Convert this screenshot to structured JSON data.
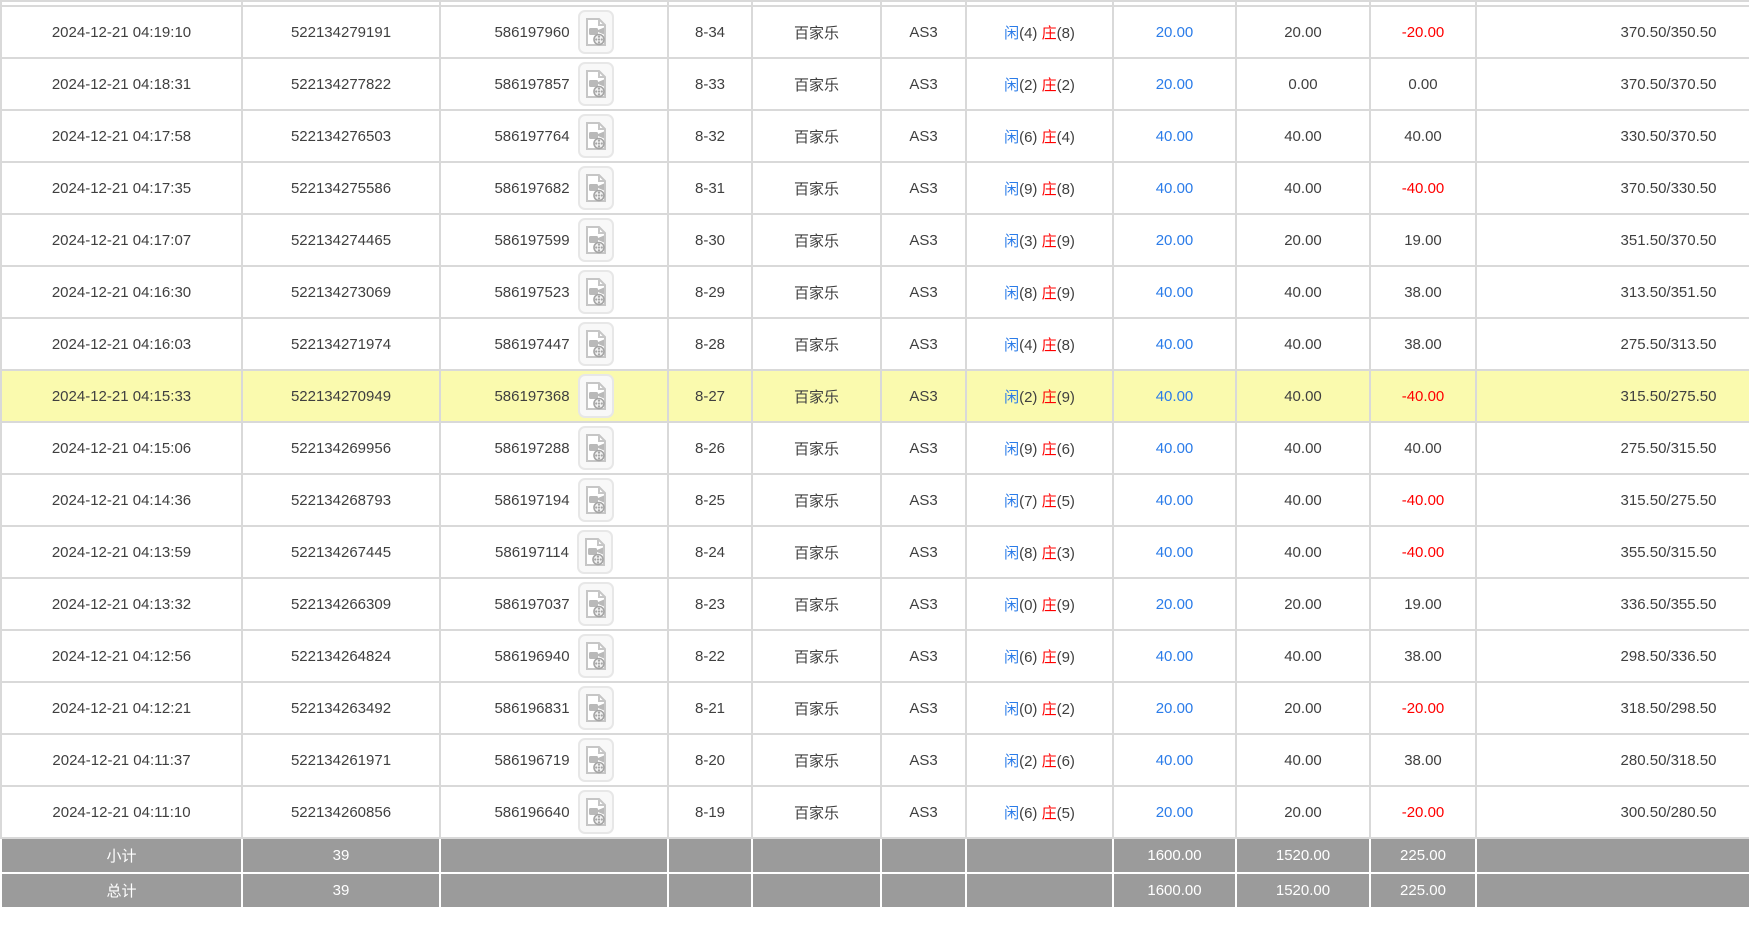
{
  "table": {
    "labels": {
      "player": "闲",
      "banker": "庄",
      "game": "百家乐",
      "table_name": "AS3",
      "subtotal": "小计",
      "total": "总计"
    },
    "colors": {
      "blue": "#2b7ce9",
      "red": "#ff0000",
      "text": "#3f3f3f",
      "grid": "#d9d9d9",
      "highlight_yellow": "#fafaae",
      "summary_bg": "#9b9b9b"
    },
    "icons": {
      "video_icon": "video-record-icon"
    },
    "rows": [
      {
        "time": "2024-12-21 04:19:10",
        "order_no": "522134279191",
        "video_no": "586197960",
        "round": "8-34",
        "game": "百家乐",
        "table_name": "AS3",
        "player": "4",
        "banker": "8",
        "bet": "20.00",
        "valid": "20.00",
        "win_loss": "-20.00",
        "balance": "370.50/350.50",
        "highlighted": false
      },
      {
        "time": "2024-12-21 04:18:31",
        "order_no": "522134277822",
        "video_no": "586197857",
        "round": "8-33",
        "game": "百家乐",
        "table_name": "AS3",
        "player": "2",
        "banker": "2",
        "bet": "20.00",
        "valid": "0.00",
        "win_loss": "0.00",
        "balance": "370.50/370.50",
        "highlighted": false
      },
      {
        "time": "2024-12-21 04:17:58",
        "order_no": "522134276503",
        "video_no": "586197764",
        "round": "8-32",
        "game": "百家乐",
        "table_name": "AS3",
        "player": "6",
        "banker": "4",
        "bet": "40.00",
        "valid": "40.00",
        "win_loss": "40.00",
        "balance": "330.50/370.50",
        "highlighted": false
      },
      {
        "time": "2024-12-21 04:17:35",
        "order_no": "522134275586",
        "video_no": "586197682",
        "round": "8-31",
        "game": "百家乐",
        "table_name": "AS3",
        "player": "9",
        "banker": "8",
        "bet": "40.00",
        "valid": "40.00",
        "win_loss": "-40.00",
        "balance": "370.50/330.50",
        "highlighted": false
      },
      {
        "time": "2024-12-21 04:17:07",
        "order_no": "522134274465",
        "video_no": "586197599",
        "round": "8-30",
        "game": "百家乐",
        "table_name": "AS3",
        "player": "3",
        "banker": "9",
        "bet": "20.00",
        "valid": "20.00",
        "win_loss": "19.00",
        "balance": "351.50/370.50",
        "highlighted": false
      },
      {
        "time": "2024-12-21 04:16:30",
        "order_no": "522134273069",
        "video_no": "586197523",
        "round": "8-29",
        "game": "百家乐",
        "table_name": "AS3",
        "player": "8",
        "banker": "9",
        "bet": "40.00",
        "valid": "40.00",
        "win_loss": "38.00",
        "balance": "313.50/351.50",
        "highlighted": false
      },
      {
        "time": "2024-12-21 04:16:03",
        "order_no": "522134271974",
        "video_no": "586197447",
        "round": "8-28",
        "game": "百家乐",
        "table_name": "AS3",
        "player": "4",
        "banker": "8",
        "bet": "40.00",
        "valid": "40.00",
        "win_loss": "38.00",
        "balance": "275.50/313.50",
        "highlighted": false
      },
      {
        "time": "2024-12-21 04:15:33",
        "order_no": "522134270949",
        "video_no": "586197368",
        "round": "8-27",
        "game": "百家乐",
        "table_name": "AS3",
        "player": "2",
        "banker": "9",
        "bet": "40.00",
        "valid": "40.00",
        "win_loss": "-40.00",
        "balance": "315.50/275.50",
        "highlighted": true
      },
      {
        "time": "2024-12-21 04:15:06",
        "order_no": "522134269956",
        "video_no": "586197288",
        "round": "8-26",
        "game": "百家乐",
        "table_name": "AS3",
        "player": "9",
        "banker": "6",
        "bet": "40.00",
        "valid": "40.00",
        "win_loss": "40.00",
        "balance": "275.50/315.50",
        "highlighted": false
      },
      {
        "time": "2024-12-21 04:14:36",
        "order_no": "522134268793",
        "video_no": "586197194",
        "round": "8-25",
        "game": "百家乐",
        "table_name": "AS3",
        "player": "7",
        "banker": "5",
        "bet": "40.00",
        "valid": "40.00",
        "win_loss": "-40.00",
        "balance": "315.50/275.50",
        "highlighted": false
      },
      {
        "time": "2024-12-21 04:13:59",
        "order_no": "522134267445",
        "video_no": "586197114",
        "round": "8-24",
        "game": "百家乐",
        "table_name": "AS3",
        "player": "8",
        "banker": "3",
        "bet": "40.00",
        "valid": "40.00",
        "win_loss": "-40.00",
        "balance": "355.50/315.50",
        "highlighted": false
      },
      {
        "time": "2024-12-21 04:13:32",
        "order_no": "522134266309",
        "video_no": "586197037",
        "round": "8-23",
        "game": "百家乐",
        "table_name": "AS3",
        "player": "0",
        "banker": "9",
        "bet": "20.00",
        "valid": "20.00",
        "win_loss": "19.00",
        "balance": "336.50/355.50",
        "highlighted": false
      },
      {
        "time": "2024-12-21 04:12:56",
        "order_no": "522134264824",
        "video_no": "586196940",
        "round": "8-22",
        "game": "百家乐",
        "table_name": "AS3",
        "player": "6",
        "banker": "9",
        "bet": "40.00",
        "valid": "40.00",
        "win_loss": "38.00",
        "balance": "298.50/336.50",
        "highlighted": false
      },
      {
        "time": "2024-12-21 04:12:21",
        "order_no": "522134263492",
        "video_no": "586196831",
        "round": "8-21",
        "game": "百家乐",
        "table_name": "AS3",
        "player": "0",
        "banker": "2",
        "bet": "20.00",
        "valid": "20.00",
        "win_loss": "-20.00",
        "balance": "318.50/298.50",
        "highlighted": false
      },
      {
        "time": "2024-12-21 04:11:37",
        "order_no": "522134261971",
        "video_no": "586196719",
        "round": "8-20",
        "game": "百家乐",
        "table_name": "AS3",
        "player": "2",
        "banker": "6",
        "bet": "40.00",
        "valid": "40.00",
        "win_loss": "38.00",
        "balance": "280.50/318.50",
        "highlighted": false
      },
      {
        "time": "2024-12-21 04:11:10",
        "order_no": "522134260856",
        "video_no": "586196640",
        "round": "8-19",
        "game": "百家乐",
        "table_name": "AS3",
        "player": "6",
        "banker": "5",
        "bet": "20.00",
        "valid": "20.00",
        "win_loss": "-20.00",
        "balance": "300.50/280.50",
        "highlighted": false
      }
    ],
    "summary": [
      {
        "label": "小计",
        "count": "39",
        "bet": "1600.00",
        "valid": "1520.00",
        "win_loss": "225.00"
      },
      {
        "label": "总计",
        "count": "39",
        "bet": "1600.00",
        "valid": "1520.00",
        "win_loss": "225.00"
      }
    ]
  }
}
